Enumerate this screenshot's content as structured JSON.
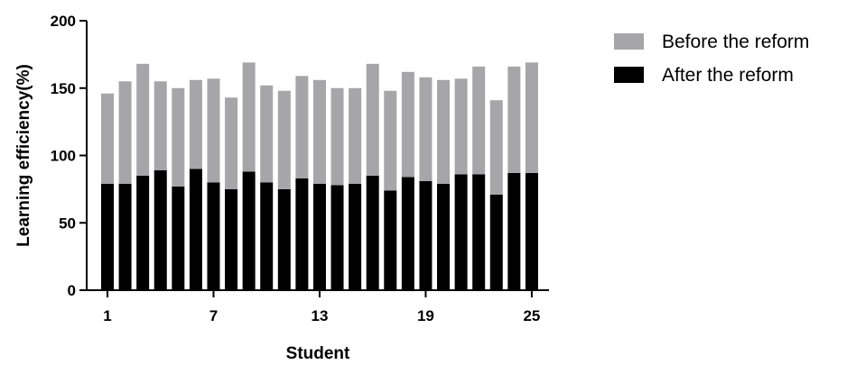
{
  "chart_data": {
    "type": "bar",
    "stacked": true,
    "xlabel": "Student",
    "ylabel": "Learning efficiency(%)",
    "ylim": [
      0,
      200
    ],
    "yticks": [
      0,
      50,
      100,
      150,
      200
    ],
    "xtick_labels": [
      "1",
      "7",
      "13",
      "19",
      "25"
    ],
    "categories": [
      "1",
      "2",
      "3",
      "4",
      "5",
      "6",
      "7",
      "8",
      "9",
      "10",
      "11",
      "12",
      "13",
      "14",
      "15",
      "16",
      "17",
      "18",
      "19",
      "20",
      "21",
      "22",
      "23",
      "24",
      "25"
    ],
    "legend_position": "right",
    "series": [
      {
        "name": "After the reform",
        "color": "#000000",
        "values": [
          79,
          79,
          85,
          89,
          77,
          90,
          80,
          75,
          88,
          80,
          75,
          83,
          79,
          78,
          79,
          85,
          74,
          84,
          81,
          79,
          86,
          86,
          71,
          87,
          87
        ]
      },
      {
        "name": "Before the reform",
        "color": "#a6a6a8",
        "values": [
          67,
          76,
          83,
          66,
          73,
          66,
          77,
          68,
          81,
          72,
          73,
          76,
          77,
          72,
          71,
          83,
          74,
          78,
          77,
          77,
          71,
          80,
          70,
          79,
          82
        ]
      }
    ]
  }
}
